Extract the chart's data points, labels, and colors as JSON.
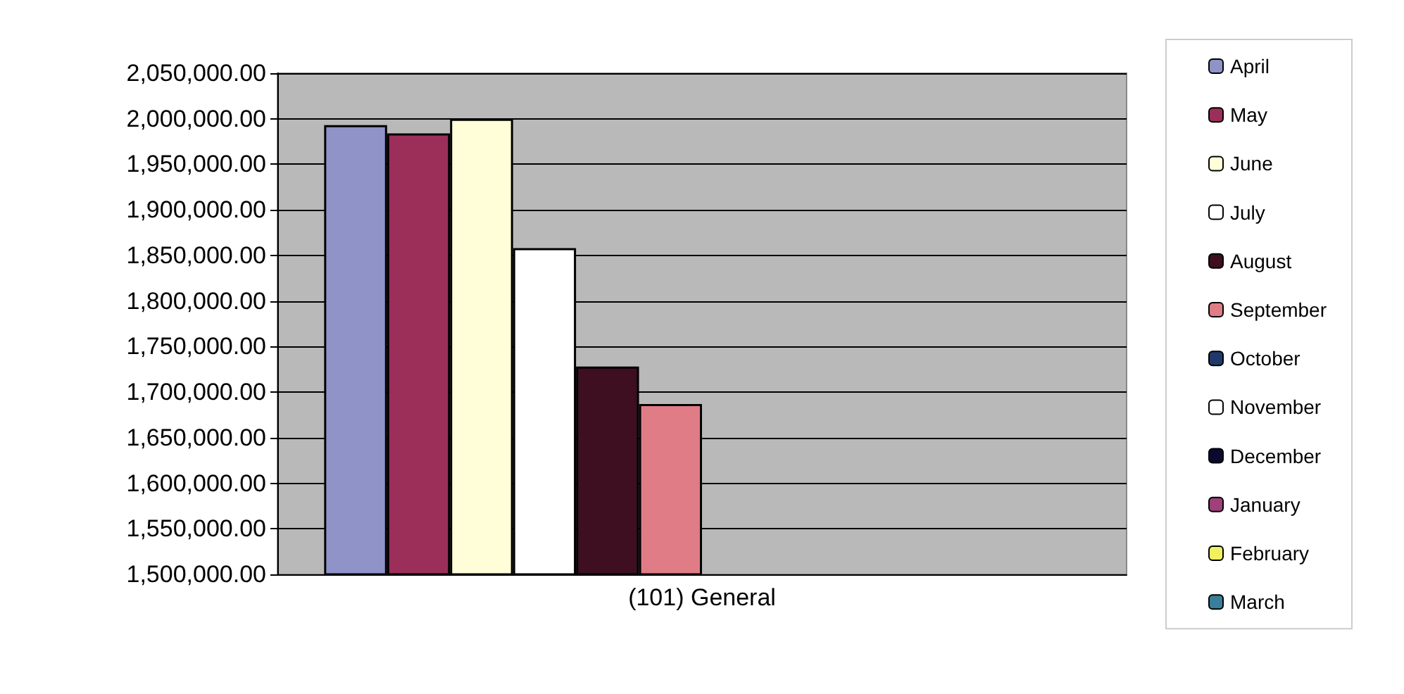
{
  "chart_data": {
    "type": "bar",
    "categories": [
      "(101) General"
    ],
    "series": [
      {
        "name": "April",
        "color": "#8f93c8",
        "values": [
          1993000
        ]
      },
      {
        "name": "May",
        "color": "#9b2f5a",
        "values": [
          1984000
        ]
      },
      {
        "name": "June",
        "color": "#fffed8",
        "values": [
          2000000
        ]
      },
      {
        "name": "July",
        "color": "#ffffff",
        "values": [
          1858000
        ]
      },
      {
        "name": "August",
        "color": "#3d0f20",
        "values": [
          1728000
        ]
      },
      {
        "name": "September",
        "color": "#e07c86",
        "values": [
          1687000
        ]
      },
      {
        "name": "October",
        "color": "#1f3a6a",
        "values": [
          null
        ]
      },
      {
        "name": "November",
        "color": "#ffffff",
        "values": [
          null
        ]
      },
      {
        "name": "December",
        "color": "#0a0a30",
        "values": [
          null
        ]
      },
      {
        "name": "January",
        "color": "#a0407a",
        "values": [
          null
        ]
      },
      {
        "name": "February",
        "color": "#f0f060",
        "values": [
          null
        ]
      },
      {
        "name": "March",
        "color": "#3a7f9a",
        "values": [
          null
        ]
      }
    ],
    "ylim": [
      1500000,
      2050000
    ],
    "yticks": [
      {
        "value": 1500000,
        "label": "1,500,000.00"
      },
      {
        "value": 1550000,
        "label": "1,550,000.00"
      },
      {
        "value": 1600000,
        "label": "1,600,000.00"
      },
      {
        "value": 1650000,
        "label": "1,650,000.00"
      },
      {
        "value": 1700000,
        "label": "1,700,000.00"
      },
      {
        "value": 1750000,
        "label": "1,750,000.00"
      },
      {
        "value": 1800000,
        "label": "1,800,000.00"
      },
      {
        "value": 1850000,
        "label": "1,850,000.00"
      },
      {
        "value": 1900000,
        "label": "1,900,000.00"
      },
      {
        "value": 1950000,
        "label": "1,950,000.00"
      },
      {
        "value": 2000000,
        "label": "2,000,000.00"
      },
      {
        "value": 2050000,
        "label": "2,050,000.00"
      }
    ],
    "grid": "y",
    "legend": "right"
  }
}
